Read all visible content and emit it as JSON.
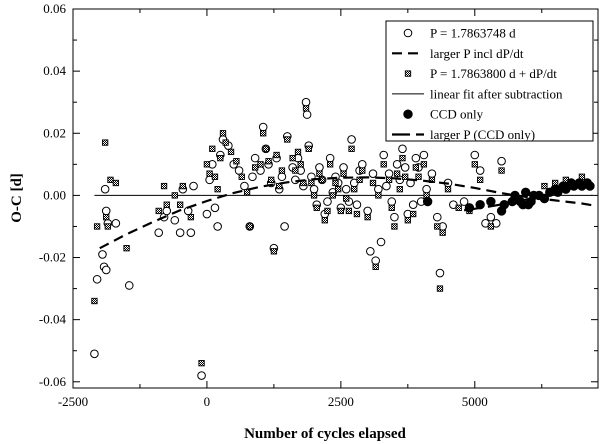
{
  "chart_data": {
    "type": "scatter",
    "title": "",
    "xlabel": "Number of cycles elapsed",
    "ylabel": "O-C [d]",
    "xlim": [
      -2500,
      7300
    ],
    "ylim": [
      -0.062,
      0.06
    ],
    "x_ticks": [
      -2500,
      0,
      2500,
      5000
    ],
    "x_tick_labels": [
      "-2500",
      "0",
      "2500",
      "5000"
    ],
    "y_ticks": [
      -0.06,
      -0.04,
      -0.02,
      0.0,
      0.02,
      0.04,
      0.06
    ],
    "y_tick_labels": [
      "-0.06",
      "-0.04",
      "-0.02",
      "0.00",
      "0.02",
      "0.04",
      "0.06"
    ],
    "grid": false,
    "legend_position": "top-right",
    "series": [
      {
        "name": "P = 1.7863748 d",
        "marker": "open-circle",
        "points": [
          [
            -2100,
            -0.051
          ],
          [
            -2050,
            -0.027
          ],
          [
            -1950,
            -0.019
          ],
          [
            -1920,
            -0.023
          ],
          [
            -1880,
            -0.024
          ],
          [
            -1900,
            0.002
          ],
          [
            -1880,
            -0.005
          ],
          [
            -1850,
            -0.009
          ],
          [
            -1700,
            -0.009
          ],
          [
            -1450,
            -0.029
          ],
          [
            -900,
            -0.012
          ],
          [
            -800,
            -0.007
          ],
          [
            -750,
            -0.005
          ],
          [
            -600,
            -0.008
          ],
          [
            -500,
            -0.012
          ],
          [
            -450,
            0.002
          ],
          [
            -350,
            -0.005
          ],
          [
            -300,
            -0.012
          ],
          [
            -250,
            0.003
          ],
          [
            -100,
            -0.058
          ],
          [
            0,
            -0.006
          ],
          [
            50,
            0.005
          ],
          [
            100,
            0.01
          ],
          [
            150,
            -0.004
          ],
          [
            200,
            -0.01
          ],
          [
            250,
            0.013
          ],
          [
            300,
            0.018
          ],
          [
            400,
            0.016
          ],
          [
            500,
            0.01
          ],
          [
            600,
            0.008
          ],
          [
            700,
            0.003
          ],
          [
            800,
            -0.01
          ],
          [
            850,
            0.006
          ],
          [
            900,
            0.012
          ],
          [
            1000,
            0.008
          ],
          [
            1050,
            0.022
          ],
          [
            1100,
            0.015
          ],
          [
            1150,
            0.01
          ],
          [
            1200,
            0.004
          ],
          [
            1250,
            -0.017
          ],
          [
            1300,
            0.012
          ],
          [
            1350,
            0.002
          ],
          [
            1400,
            0.006
          ],
          [
            1450,
            -0.01
          ],
          [
            1500,
            0.019
          ],
          [
            1600,
            0.009
          ],
          [
            1650,
            0.005
          ],
          [
            1700,
            0.012
          ],
          [
            1750,
            0.008
          ],
          [
            1800,
            0.003
          ],
          [
            1850,
            0.03
          ],
          [
            1870,
            0.026
          ],
          [
            1900,
            0.016
          ],
          [
            1950,
            0.006
          ],
          [
            2000,
            0.002
          ],
          [
            2050,
            -0.003
          ],
          [
            2100,
            0.009
          ],
          [
            2150,
            0.005
          ],
          [
            2200,
            -0.006
          ],
          [
            2250,
            -0.002
          ],
          [
            2300,
            0.012
          ],
          [
            2350,
            0.001
          ],
          [
            2400,
            0.006
          ],
          [
            2450,
            0.004
          ],
          [
            2500,
            -0.004
          ],
          [
            2550,
            0.009
          ],
          [
            2600,
            0.002
          ],
          [
            2650,
            -0.002
          ],
          [
            2700,
            0.018
          ],
          [
            2750,
            0.004
          ],
          [
            2800,
            -0.003
          ],
          [
            2850,
            0.008
          ],
          [
            2900,
            0.01
          ],
          [
            3000,
            -0.005
          ],
          [
            3050,
            -0.018
          ],
          [
            3100,
            0.007
          ],
          [
            3150,
            -0.021
          ],
          [
            3200,
            0.002
          ],
          [
            3250,
            -0.015
          ],
          [
            3300,
            0.013
          ],
          [
            3350,
            0.003
          ],
          [
            3400,
            0.007
          ],
          [
            3450,
            -0.002
          ],
          [
            3500,
            -0.007
          ],
          [
            3550,
            0.01
          ],
          [
            3600,
            0.005
          ],
          [
            3650,
            0.015
          ],
          [
            3700,
            0.009
          ],
          [
            3750,
            -0.006
          ],
          [
            3800,
            0.004
          ],
          [
            3850,
            -0.003
          ],
          [
            3900,
            0.012
          ],
          [
            3950,
            0.009
          ],
          [
            4000,
            -0.002
          ],
          [
            4050,
            0.013
          ],
          [
            4100,
            0.002
          ],
          [
            4200,
            0.007
          ],
          [
            4300,
            -0.007
          ],
          [
            4350,
            -0.025
          ],
          [
            4400,
            -0.01
          ],
          [
            4500,
            0.004
          ],
          [
            4600,
            -0.003
          ],
          [
            4800,
            -0.002
          ],
          [
            4900,
            -0.004
          ],
          [
            5000,
            0.013
          ],
          [
            5100,
            0.008
          ],
          [
            5200,
            -0.009
          ],
          [
            5300,
            -0.007
          ],
          [
            5400,
            -0.009
          ],
          [
            5500,
            0.011
          ]
        ]
      },
      {
        "name": "larger P incl dP/dt",
        "marker": "dashed-line",
        "x": [
          -2000,
          -1500,
          -1000,
          -500,
          0,
          500,
          1000,
          1500,
          2000,
          2500,
          3000,
          3500,
          4000,
          4500,
          5000,
          5500,
          6000,
          6500,
          7000,
          7200
        ],
        "y": [
          -0.017,
          -0.0125,
          -0.0085,
          -0.0048,
          -0.0018,
          0.0008,
          0.0028,
          0.0042,
          0.0052,
          0.0057,
          0.0058,
          0.0055,
          0.0048,
          0.0038,
          0.0024,
          0.0007,
          -0.0006,
          -0.0016,
          -0.0026,
          -0.0032
        ]
      },
      {
        "name": "P = 1.7863800 d + dP/dt",
        "marker": "dotted-square",
        "points": [
          [
            -2100,
            -0.034
          ],
          [
            -2050,
            -0.01
          ],
          [
            -1900,
            0.017
          ],
          [
            -1880,
            -0.007
          ],
          [
            -1850,
            -0.01
          ],
          [
            -1800,
            0.005
          ],
          [
            -1700,
            0.004
          ],
          [
            -1500,
            -0.017
          ],
          [
            -900,
            -0.005
          ],
          [
            -800,
            0.003
          ],
          [
            -750,
            -0.003
          ],
          [
            -600,
            0.0
          ],
          [
            -500,
            -0.003
          ],
          [
            -450,
            0.003
          ],
          [
            -300,
            -0.007
          ],
          [
            -100,
            -0.054
          ],
          [
            0,
            0.01
          ],
          [
            50,
            0.007
          ],
          [
            100,
            0.015
          ],
          [
            150,
            0.006
          ],
          [
            200,
            0.002
          ],
          [
            250,
            0.012
          ],
          [
            300,
            0.02
          ],
          [
            350,
            0.017
          ],
          [
            450,
            0.014
          ],
          [
            550,
            0.011
          ],
          [
            650,
            0.006
          ],
          [
            750,
            0.001
          ],
          [
            800,
            -0.01
          ],
          [
            900,
            0.009
          ],
          [
            1000,
            0.01
          ],
          [
            1050,
            0.02
          ],
          [
            1100,
            0.015
          ],
          [
            1150,
            0.011
          ],
          [
            1200,
            0.005
          ],
          [
            1250,
            -0.018
          ],
          [
            1300,
            0.013
          ],
          [
            1350,
            0.003
          ],
          [
            1400,
            0.008
          ],
          [
            1500,
            0.018
          ],
          [
            1600,
            0.012
          ],
          [
            1650,
            0.008
          ],
          [
            1700,
            0.014
          ],
          [
            1750,
            0.01
          ],
          [
            1800,
            0.004
          ],
          [
            1850,
            0.028
          ],
          [
            1900,
            0.015
          ],
          [
            1950,
            0.004
          ],
          [
            2000,
            0.0
          ],
          [
            2050,
            -0.004
          ],
          [
            2100,
            0.007
          ],
          [
            2150,
            0.005
          ],
          [
            2200,
            -0.008
          ],
          [
            2250,
            -0.005
          ],
          [
            2300,
            0.01
          ],
          [
            2350,
            0.0
          ],
          [
            2400,
            0.004
          ],
          [
            2450,
            0.002
          ],
          [
            2500,
            -0.005
          ],
          [
            2550,
            0.007
          ],
          [
            2600,
            -0.001
          ],
          [
            2650,
            -0.005
          ],
          [
            2700,
            0.015
          ],
          [
            2750,
            0.002
          ],
          [
            2800,
            -0.006
          ],
          [
            2850,
            0.005
          ],
          [
            2900,
            0.008
          ],
          [
            3000,
            -0.007
          ],
          [
            3100,
            0.004
          ],
          [
            3150,
            -0.023
          ],
          [
            3200,
            0.0
          ],
          [
            3300,
            0.01
          ],
          [
            3400,
            0.005
          ],
          [
            3450,
            -0.004
          ],
          [
            3500,
            -0.01
          ],
          [
            3550,
            0.007
          ],
          [
            3600,
            0.002
          ],
          [
            3650,
            0.012
          ],
          [
            3700,
            0.006
          ],
          [
            3750,
            -0.008
          ],
          [
            3850,
            -0.006
          ],
          [
            3900,
            0.009
          ],
          [
            3950,
            0.006
          ],
          [
            4050,
            0.01
          ],
          [
            4100,
            0.0
          ],
          [
            4200,
            0.005
          ],
          [
            4300,
            -0.01
          ],
          [
            4350,
            -0.03
          ],
          [
            4400,
            -0.012
          ],
          [
            4500,
            0.002
          ],
          [
            4700,
            -0.004
          ],
          [
            4900,
            -0.005
          ],
          [
            5000,
            0.01
          ],
          [
            5100,
            0.005
          ],
          [
            5300,
            -0.01
          ],
          [
            5500,
            0.008
          ],
          [
            6300,
            0.003
          ],
          [
            6500,
            0.004
          ],
          [
            6700,
            0.005
          ],
          [
            7000,
            0.006
          ]
        ]
      },
      {
        "name": "linear fit after subtraction",
        "marker": "solid-line",
        "x": [
          -2100,
          7200
        ],
        "y": [
          0.0,
          0.0
        ]
      },
      {
        "name": "CCD only",
        "marker": "filled-circle",
        "points": [
          [
            4120,
            -0.002
          ],
          [
            4900,
            -0.004
          ],
          [
            5100,
            -0.003
          ],
          [
            5300,
            -0.002
          ],
          [
            5500,
            -0.005
          ],
          [
            5550,
            -0.003
          ],
          [
            5700,
            -0.002
          ],
          [
            5750,
            0.0
          ],
          [
            5850,
            -0.002
          ],
          [
            5900,
            -0.003
          ],
          [
            5950,
            0.001
          ],
          [
            6000,
            -0.003
          ],
          [
            6050,
            -0.002
          ],
          [
            6100,
            0.0
          ],
          [
            6200,
            0.0
          ],
          [
            6300,
            -0.001
          ],
          [
            6400,
            0.001
          ],
          [
            6500,
            0.002
          ],
          [
            6550,
            0.001
          ],
          [
            6650,
            0.003
          ],
          [
            6700,
            0.002
          ],
          [
            6800,
            0.004
          ],
          [
            6850,
            0.003
          ],
          [
            6950,
            0.004
          ],
          [
            7000,
            0.003
          ],
          [
            7100,
            0.004
          ],
          [
            7150,
            0.003
          ]
        ]
      },
      {
        "name": "larger P (CCD only)",
        "marker": "long-dash-line",
        "x": [
          4800,
          5200,
          5600,
          6000,
          6400,
          6800,
          7200
        ],
        "y": [
          -0.0048,
          -0.0038,
          -0.0026,
          -0.0012,
          0.0005,
          0.0022,
          0.004
        ]
      }
    ]
  }
}
